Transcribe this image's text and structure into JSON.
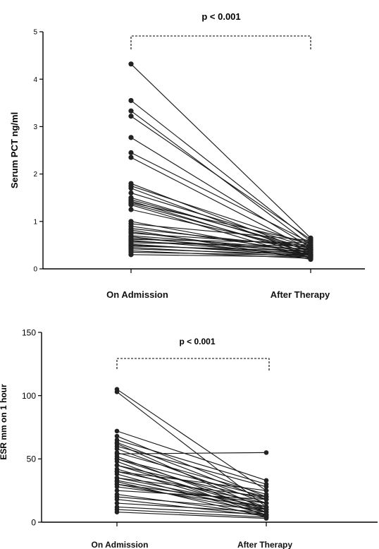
{
  "chart_data": [
    {
      "type": "line",
      "ylabel": "Serum PCT ng/ml",
      "xlabel": "",
      "categories": [
        "On Admission",
        "After Therapy"
      ],
      "ylim": [
        0,
        5
      ],
      "yticks": [
        "0",
        "1",
        "2",
        "3",
        "4",
        "5"
      ],
      "annotation": "p < 0.001",
      "pairs": [
        [
          4.32,
          0.65
        ],
        [
          3.55,
          0.58
        ],
        [
          3.33,
          0.5
        ],
        [
          3.22,
          0.62
        ],
        [
          2.77,
          0.45
        ],
        [
          2.45,
          0.55
        ],
        [
          2.35,
          0.4
        ],
        [
          1.8,
          0.35
        ],
        [
          1.75,
          0.5
        ],
        [
          1.7,
          0.3
        ],
        [
          1.6,
          0.45
        ],
        [
          1.5,
          0.38
        ],
        [
          1.46,
          0.42
        ],
        [
          1.43,
          0.28
        ],
        [
          1.4,
          0.55
        ],
        [
          1.38,
          0.33
        ],
        [
          1.35,
          0.22
        ],
        [
          1.25,
          0.4
        ],
        [
          1.0,
          0.3
        ],
        [
          0.95,
          0.6
        ],
        [
          0.9,
          0.35
        ],
        [
          0.85,
          0.45
        ],
        [
          0.82,
          0.2
        ],
        [
          0.78,
          0.3
        ],
        [
          0.75,
          0.5
        ],
        [
          0.7,
          0.4
        ],
        [
          0.68,
          0.25
        ],
        [
          0.65,
          0.35
        ],
        [
          0.62,
          0.55
        ],
        [
          0.6,
          0.3
        ],
        [
          0.58,
          0.42
        ],
        [
          0.55,
          0.48
        ],
        [
          0.52,
          0.28
        ],
        [
          0.5,
          0.33
        ],
        [
          0.48,
          0.38
        ],
        [
          0.45,
          0.25
        ],
        [
          0.42,
          0.3
        ],
        [
          0.38,
          0.22
        ],
        [
          0.35,
          0.28
        ],
        [
          0.3,
          0.25
        ]
      ]
    },
    {
      "type": "line",
      "ylabel": "ESR mm on 1 hour",
      "xlabel": "",
      "categories": [
        "On Admission",
        "After Therapy"
      ],
      "ylim": [
        0,
        150
      ],
      "yticks": [
        "0",
        "50",
        "100",
        "150"
      ],
      "annotation": "p < 0.001",
      "pairs": [
        [
          105,
          25
        ],
        [
          103,
          12
        ],
        [
          72,
          33
        ],
        [
          68,
          20
        ],
        [
          65,
          30
        ],
        [
          63,
          18
        ],
        [
          62,
          10
        ],
        [
          60,
          28
        ],
        [
          58,
          15
        ],
        [
          55,
          22
        ],
        [
          54,
          55
        ],
        [
          52,
          8
        ],
        [
          50,
          12
        ],
        [
          50,
          20
        ],
        [
          48,
          5
        ],
        [
          45,
          18
        ],
        [
          45,
          10
        ],
        [
          42,
          8
        ],
        [
          40,
          15
        ],
        [
          40,
          25
        ],
        [
          38,
          6
        ],
        [
          35,
          12
        ],
        [
          35,
          20
        ],
        [
          33,
          10
        ],
        [
          32,
          4
        ],
        [
          30,
          15
        ],
        [
          30,
          8
        ],
        [
          28,
          12
        ],
        [
          25,
          18
        ],
        [
          22,
          6
        ],
        [
          20,
          10
        ],
        [
          18,
          5
        ],
        [
          15,
          8
        ],
        [
          12,
          6
        ],
        [
          10,
          4
        ],
        [
          8,
          3
        ]
      ]
    }
  ]
}
